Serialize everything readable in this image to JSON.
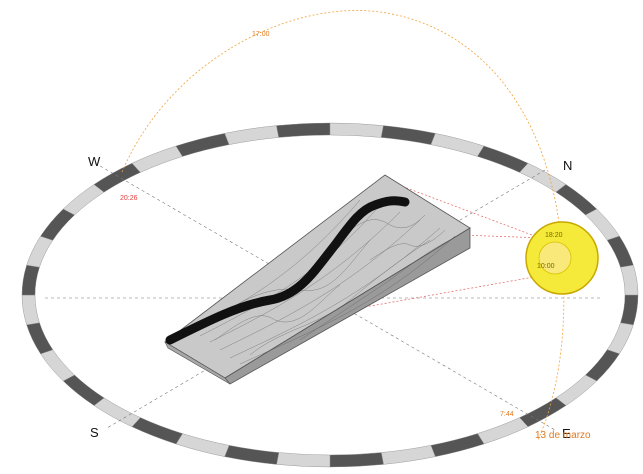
{
  "compass": {
    "north": "N",
    "south": "S",
    "east": "E",
    "west": "W"
  },
  "sun_path": {
    "noon_time": "17:00",
    "sunset_time": "20:26",
    "sunrise_time": "7:44",
    "date": "13 de marzo"
  },
  "sun": {
    "time_upper": "18:20",
    "time_lower": "10:00"
  },
  "colors": {
    "sun_path": "#f2a23a",
    "sunset_label": "#e04040",
    "sun_fill": "#f5ea3a",
    "sun_stroke": "#c8a800",
    "ring_dark": "#555555",
    "ring_light": "#d6d6d6",
    "terrain": "#bdbdbd",
    "road": "#111111"
  }
}
